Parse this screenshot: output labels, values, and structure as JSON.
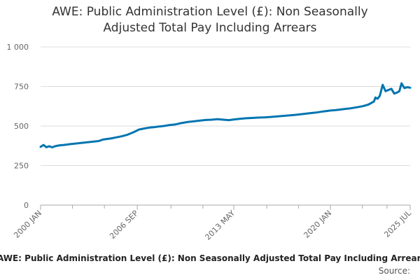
{
  "title_lines": [
    "AWE: Public Administration Level (£): Non Seasonally",
    "Adjusted Total Pay Including Arrears"
  ],
  "caption": "AWE: Public Administration Level (£): Non Seasonally Adjusted Total Pay Including Arrears",
  "source_label": "Source:",
  "colors": {
    "series": "#0075b0",
    "grid": "#dddddd",
    "axis": "#aaaaaa",
    "tick_text": "#666666"
  },
  "chart_data": {
    "type": "line",
    "title": "AWE: Public Administration Level (£): Non Seasonally Adjusted Total Pay Including Arrears",
    "xlabel": "",
    "ylabel": "",
    "x_range": [
      2000.0,
      2025.5
    ],
    "ylim": [
      0,
      1000
    ],
    "y_ticks": [
      0,
      250,
      500,
      750,
      1000
    ],
    "y_tick_labels": [
      "0",
      "250",
      "500",
      "750",
      "1 000"
    ],
    "x_ticks": [
      {
        "x": 2000.0,
        "label": "2000 JAN"
      },
      {
        "x": 2006.67,
        "label": "2006 SEP"
      },
      {
        "x": 2013.33,
        "label": "2013 MAY"
      },
      {
        "x": 2020.0,
        "label": "2020 JAN"
      },
      {
        "x": 2025.5,
        "label": "2025 JUL"
      }
    ],
    "minor_x_ticks": [
      2002.2,
      2004.4,
      2009.0,
      2011.2,
      2015.6,
      2017.8,
      2022.2,
      2023.9
    ],
    "grid": true,
    "series": [
      {
        "name": "AWE: Public Administration Level (£): Non Seasonally Adjusted Total Pay Including Arrears",
        "x": [
          2000.0,
          2000.2,
          2000.4,
          2000.6,
          2000.8,
          2001.0,
          2001.3,
          2001.6,
          2002.0,
          2002.5,
          2003.0,
          2003.5,
          2004.0,
          2004.3,
          2004.6,
          2004.9,
          2005.2,
          2005.6,
          2006.0,
          2006.4,
          2006.8,
          2007.2,
          2007.5,
          2007.8,
          2008.1,
          2008.5,
          2008.9,
          2009.3,
          2009.7,
          2010.2,
          2010.6,
          2011.0,
          2011.4,
          2011.8,
          2012.2,
          2012.6,
          2013.0,
          2013.4,
          2013.8,
          2014.2,
          2014.6,
          2015.0,
          2015.5,
          2016.0,
          2016.5,
          2017.0,
          2017.5,
          2018.0,
          2018.5,
          2019.0,
          2019.5,
          2020.0,
          2020.3,
          2020.6,
          2021.0,
          2021.4,
          2021.8,
          2022.2,
          2022.6,
          2023.0,
          2023.1,
          2023.25,
          2023.4,
          2023.6,
          2023.8,
          2024.0,
          2024.2,
          2024.4,
          2024.6,
          2024.75,
          2024.9,
          2025.1,
          2025.3,
          2025.5
        ],
        "values": [
          368,
          380,
          366,
          372,
          365,
          372,
          378,
          380,
          385,
          390,
          395,
          400,
          405,
          414,
          418,
          422,
          428,
          435,
          445,
          460,
          478,
          485,
          490,
          492,
          496,
          500,
          506,
          510,
          518,
          526,
          530,
          534,
          538,
          540,
          543,
          540,
          537,
          542,
          546,
          549,
          551,
          553,
          555,
          558,
          562,
          566,
          570,
          575,
          580,
          585,
          592,
          598,
          600,
          603,
          608,
          612,
          618,
          625,
          635,
          655,
          680,
          672,
          690,
          760,
          720,
          728,
          735,
          705,
          712,
          720,
          770,
          740,
          745,
          742
        ]
      }
    ]
  }
}
